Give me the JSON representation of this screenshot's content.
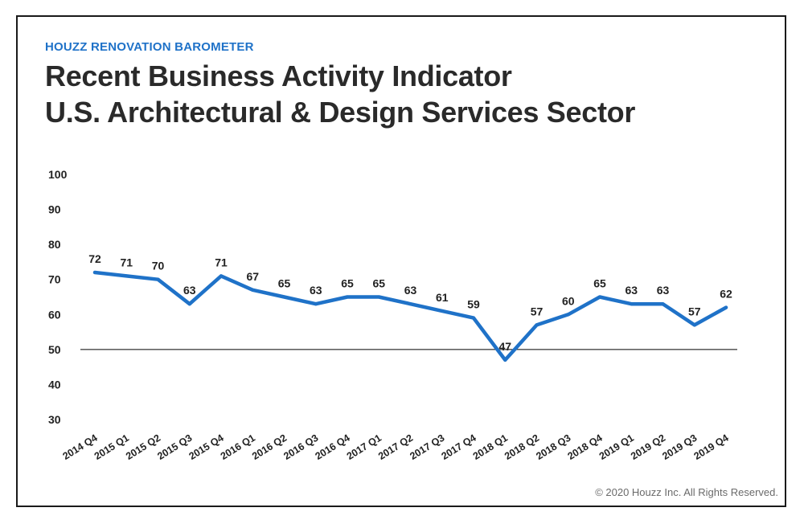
{
  "header": {
    "kicker": "HOUZZ RENOVATION BAROMETER",
    "title_line1": "Recent Business Activity Indicator",
    "title_line2": "U.S. Architectural & Design Services Sector"
  },
  "footer": {
    "copyright": "© 2020 Houzz Inc. All Rights Reserved."
  },
  "colors": {
    "line": "#1f72c8",
    "kicker": "#1f72c8",
    "reference_line": "#000000"
  },
  "chart_data": {
    "type": "line",
    "title": "Recent Business Activity Indicator U.S. Architectural & Design Services Sector",
    "xlabel": "",
    "ylabel": "",
    "ylim": [
      30,
      100
    ],
    "yticks": [
      30,
      40,
      50,
      60,
      70,
      80,
      90,
      100
    ],
    "reference_line": 50,
    "grid": false,
    "categories": [
      "2014 Q4",
      "2015 Q1",
      "2015 Q2",
      "2015 Q3",
      "2015 Q4",
      "2016 Q1",
      "2016 Q2",
      "2016 Q3",
      "2016 Q4",
      "2017 Q1",
      "2017 Q2",
      "2017 Q3",
      "2017 Q4",
      "2018 Q1",
      "2018 Q2",
      "2018 Q3",
      "2018 Q4",
      "2019 Q1",
      "2019 Q2",
      "2019 Q3",
      "2019 Q4"
    ],
    "series": [
      {
        "name": "Business Activity Indicator",
        "values": [
          72,
          71,
          70,
          63,
          71,
          67,
          65,
          63,
          65,
          65,
          63,
          61,
          59,
          47,
          57,
          60,
          65,
          63,
          63,
          57,
          62
        ]
      }
    ]
  }
}
